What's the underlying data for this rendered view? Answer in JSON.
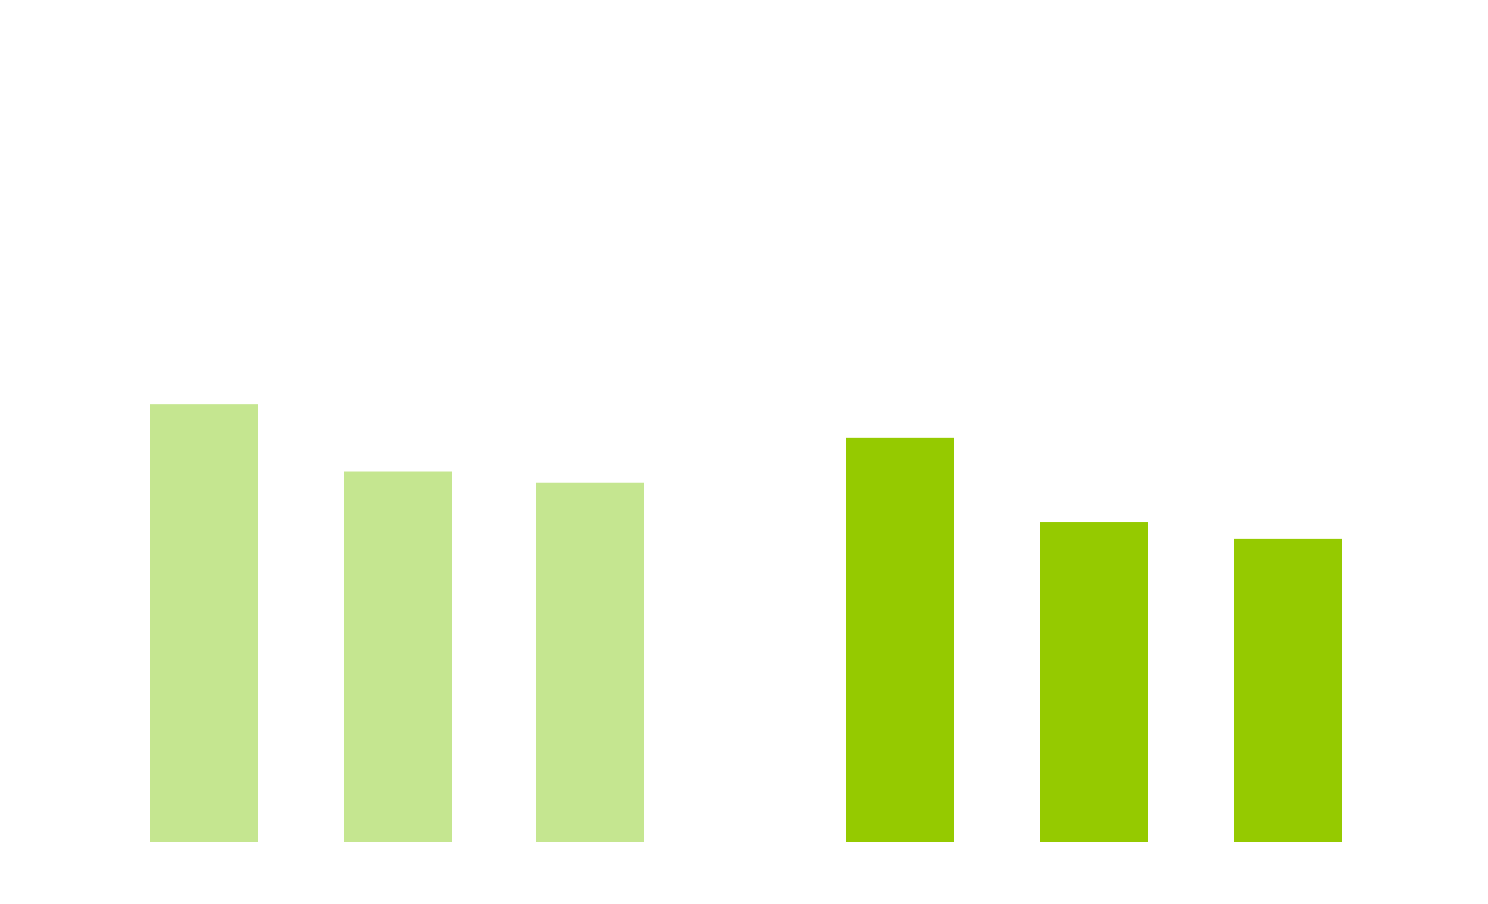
{
  "chart_data": {
    "type": "bar",
    "title": "",
    "xlabel": "",
    "ylabel": "",
    "categories": [
      "",
      "",
      "",
      "",
      "",
      ""
    ],
    "values": [
      7.8,
      6.6,
      6.4,
      7.2,
      5.7,
      5.4
    ],
    "ylim": [
      0,
      15
    ],
    "grid": false,
    "legend": "none",
    "groups": [
      {
        "bars": [
          0,
          1,
          2
        ],
        "color": "#c5e690"
      },
      {
        "bars": [
          3,
          4,
          5
        ],
        "color": "#95ca00"
      }
    ]
  }
}
